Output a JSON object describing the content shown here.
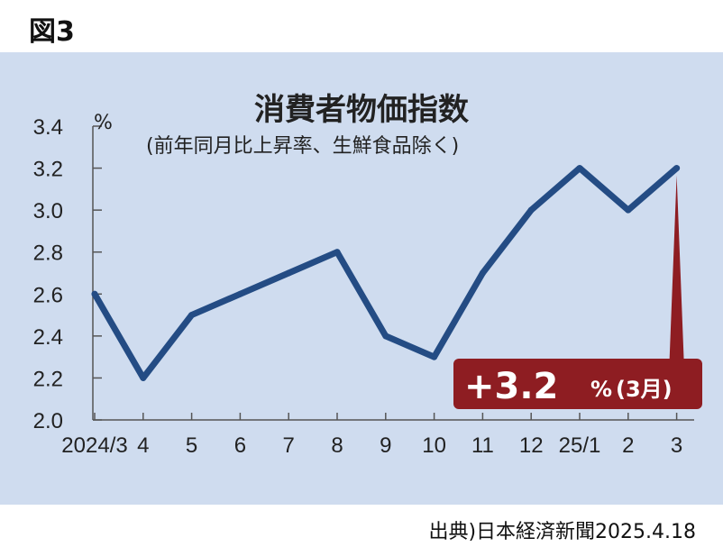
{
  "figure_label": "図3",
  "source": "出典)日本経済新聞2025.4.18",
  "colors": {
    "panel": "#cfdcef",
    "line": "#244c84",
    "callout": "#8e1d22"
  },
  "chart_data": {
    "type": "line",
    "title": "消費者物価指数",
    "subtitle": "(前年同月比上昇率、生鮮食品除く)",
    "ylabel": "%",
    "xlabel": "",
    "categories": [
      "2024/3",
      "4",
      "5",
      "6",
      "7",
      "8",
      "9",
      "10",
      "11",
      "12",
      "25/1",
      "2",
      "3"
    ],
    "values": [
      2.6,
      2.2,
      2.5,
      2.6,
      2.7,
      2.8,
      2.4,
      2.3,
      2.7,
      3.0,
      3.2,
      3.0,
      3.2
    ],
    "ylim": [
      2.0,
      3.4
    ],
    "yticks": [
      "2.0",
      "2.2",
      "2.4",
      "2.6",
      "2.8",
      "3.0",
      "3.2",
      "3.4"
    ],
    "grid": false,
    "annotation": {
      "main": "+3.2",
      "unit": "%",
      "month": "(3月)"
    }
  }
}
